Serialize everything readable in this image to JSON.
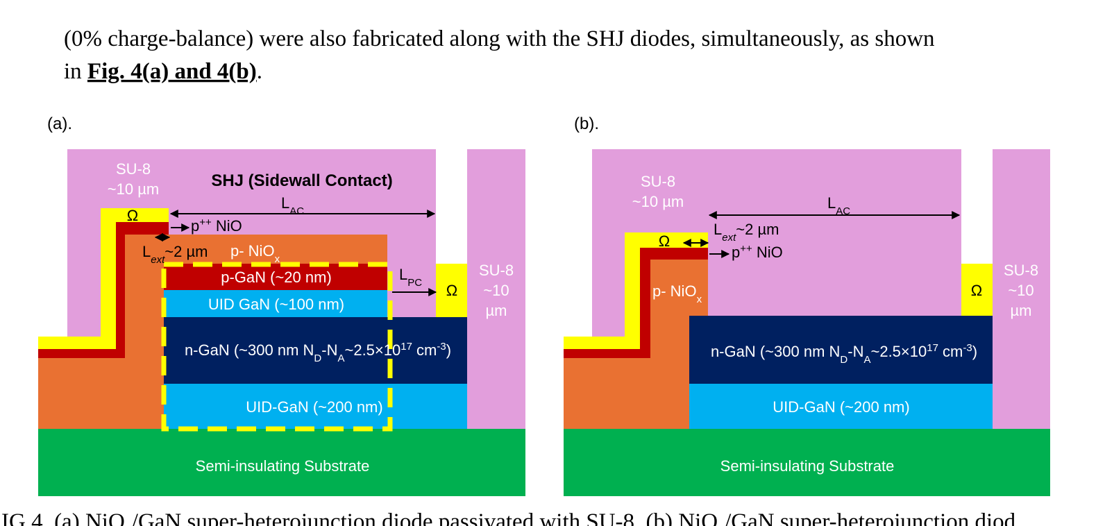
{
  "paragraph": {
    "line1": "(0% charge-balance) were also fabricated along with the SHJ diodes, simultaneously, as shown",
    "line2_start": "in ",
    "line2_link": "Fig. 4(a) and 4(b)",
    "line2_end": "."
  },
  "panel_a": {
    "label": "(a).",
    "su8_left": [
      "SU-8",
      "~10 µm"
    ],
    "title": "SHJ (Sidewall Contact)",
    "ohm": "Ω",
    "lac": [
      "L",
      "AC"
    ],
    "pnio_pp": [
      "p",
      "++",
      " NiO"
    ],
    "lext": [
      "L",
      "ext",
      "~2 µm"
    ],
    "pniox": [
      "p- NiO",
      "x"
    ],
    "pgan": "p-GaN (~20 nm)",
    "lpc": [
      "L",
      "PC"
    ],
    "ohm_right": "Ω",
    "su8_right": [
      "SU-8",
      "~10",
      "µm"
    ],
    "uid_gan": "UID GaN (~100 nm)",
    "ngan": [
      "n-GaN (~300 nm N",
      "D",
      "-N",
      "A",
      "~2.5×10",
      "17",
      " cm",
      "-3",
      ")"
    ],
    "uid_gan2": "UID-GaN (~200 nm)",
    "substrate": "Semi-insulating Substrate"
  },
  "panel_b": {
    "label": "(b).",
    "su8_left": [
      "SU-8",
      "~10 µm"
    ],
    "ohm": "Ω",
    "lac": [
      "L",
      "AC"
    ],
    "lext": [
      "L",
      "ext",
      "~2 µm"
    ],
    "pnio_pp": [
      "p",
      "++",
      " NiO"
    ],
    "pniox": [
      "p- NiO",
      "x"
    ],
    "ohm_right": "Ω",
    "su8_right": [
      "SU-8",
      "~10",
      "µm"
    ],
    "ngan": [
      "n-GaN (~300 nm N",
      "D",
      "-N",
      "A",
      "~2.5×10",
      "17",
      " cm",
      "-3",
      ")"
    ],
    "uid_gan2": "UID-GaN (~200 nm)",
    "substrate": "Semi-insulating Substrate"
  },
  "caption": [
    "IG 4. (a) NiO",
    "x",
    "/GaN super-heterojunction diode passivated with SU-8. (b) NiO",
    "x",
    "/GaN super-heterojunction diod"
  ]
}
